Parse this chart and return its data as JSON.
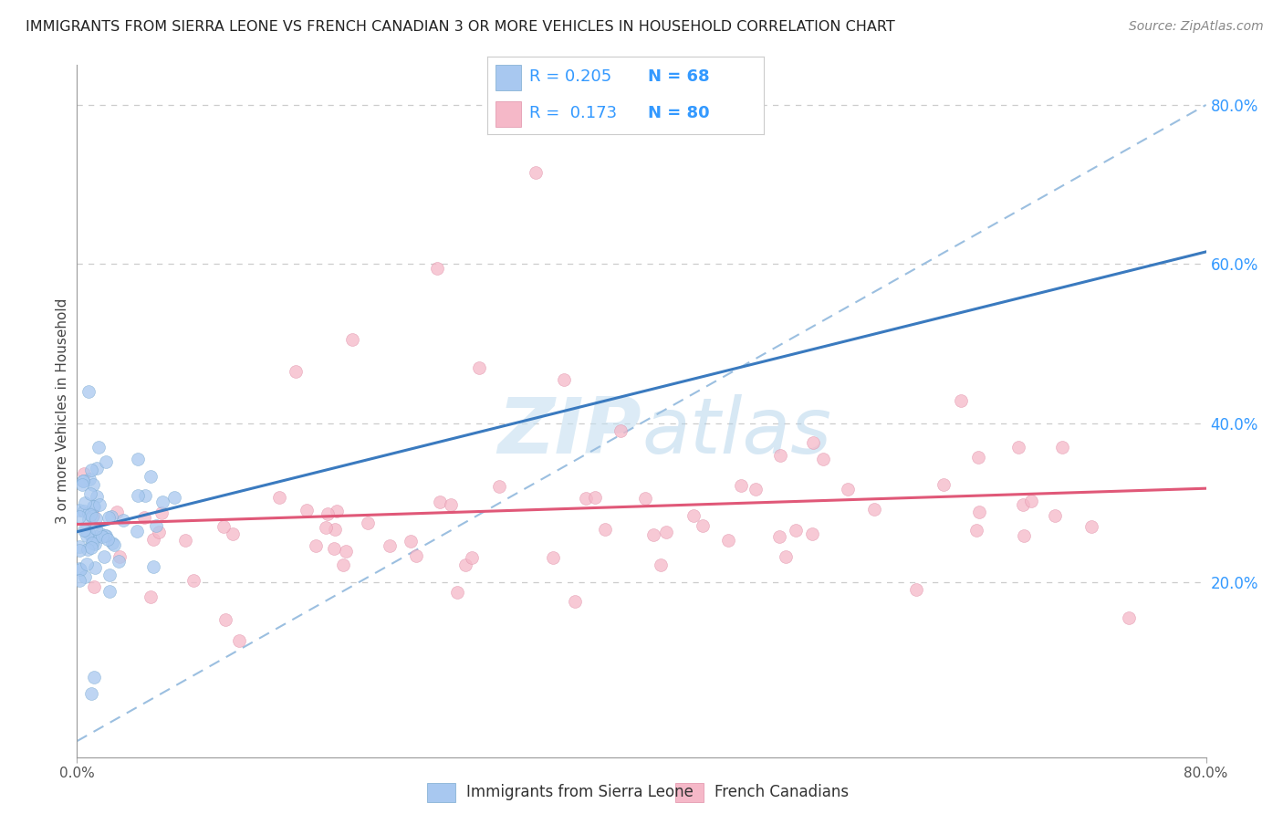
{
  "title": "IMMIGRANTS FROM SIERRA LEONE VS FRENCH CANADIAN 3 OR MORE VEHICLES IN HOUSEHOLD CORRELATION CHART",
  "source": "Source: ZipAtlas.com",
  "ylabel": "3 or more Vehicles in Household",
  "right_yticks": [
    "80.0%",
    "60.0%",
    "40.0%",
    "20.0%"
  ],
  "right_ytick_vals": [
    0.8,
    0.6,
    0.4,
    0.2
  ],
  "series1_label": "Immigrants from Sierra Leone",
  "series1_R": 0.205,
  "series1_N": 68,
  "series1_color": "#a8c8f0",
  "series1_edge_color": "#7aaad0",
  "series1_line_color": "#3a7abf",
  "series2_label": "French Canadians",
  "series2_R": 0.173,
  "series2_N": 80,
  "series2_color": "#f5b8c8",
  "series2_edge_color": "#e090a8",
  "series2_line_color": "#e05878",
  "diag_color": "#9bbfe0",
  "watermark_color": "#c5dff0",
  "xmin": 0.0,
  "xmax": 0.8,
  "ymin": -0.02,
  "ymax": 0.85,
  "background_color": "#ffffff"
}
